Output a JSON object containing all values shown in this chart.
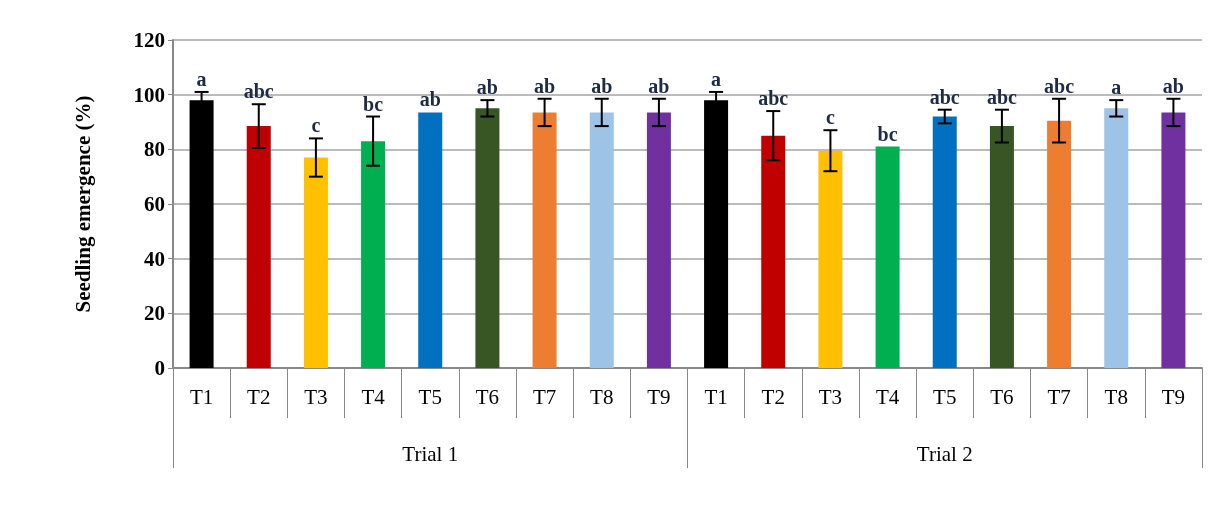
{
  "chart_data": {
    "type": "bar",
    "ylabel": "Seedling emergence (%)",
    "categories": [
      "T1",
      "T2",
      "T3",
      "T4",
      "T5",
      "T6",
      "T7",
      "T8",
      "T9",
      "T1",
      "T2",
      "T3",
      "T4",
      "T5",
      "T6",
      "T7",
      "T8",
      "T9"
    ],
    "values": [
      98,
      88.5,
      77,
      83,
      93.5,
      95,
      93.5,
      93.5,
      93.5,
      98,
      85,
      79.5,
      81,
      92,
      88.5,
      90.5,
      95,
      93.5
    ],
    "errors": [
      3,
      8,
      7,
      9,
      null,
      3,
      5,
      5,
      5,
      3,
      9,
      7.5,
      null,
      2.5,
      6,
      8,
      3,
      5
    ],
    "colors": [
      "#000000",
      "#c00000",
      "#ffc000",
      "#00b050",
      "#0070c0",
      "#375623",
      "#ed7d31",
      "#9dc3e6",
      "#7030a0",
      "#000000",
      "#c00000",
      "#ffc000",
      "#00b050",
      "#0070c0",
      "#375623",
      "#ed7d31",
      "#9dc3e6",
      "#7030a0"
    ],
    "value_labels": [
      "a",
      "abc",
      "c",
      "bc",
      "ab",
      "ab",
      "ab",
      "ab",
      "ab",
      "a",
      "abc",
      "c",
      "bc",
      "abc",
      "abc",
      "abc",
      "a",
      "ab"
    ],
    "annotations": [
      "Trial 1",
      "Trial 2"
    ],
    "ylim": [
      0,
      120
    ],
    "yticks": [
      0,
      20,
      40,
      60,
      80,
      100,
      120
    ],
    "grid": "y"
  }
}
